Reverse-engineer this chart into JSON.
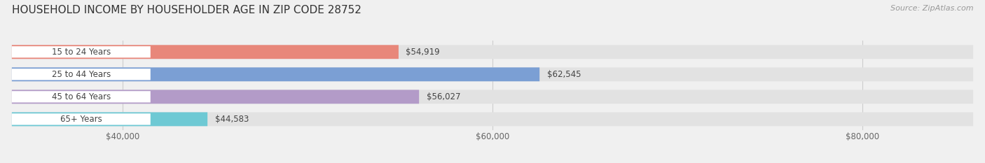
{
  "title": "HOUSEHOLD INCOME BY HOUSEHOLDER AGE IN ZIP CODE 28752",
  "source": "Source: ZipAtlas.com",
  "categories": [
    "15 to 24 Years",
    "25 to 44 Years",
    "45 to 64 Years",
    "65+ Years"
  ],
  "values": [
    54919,
    62545,
    56027,
    44583
  ],
  "bar_colors": [
    "#e8877a",
    "#7b9fd4",
    "#b39bc8",
    "#6ec9d4"
  ],
  "bar_labels": [
    "$54,919",
    "$62,545",
    "$56,027",
    "$44,583"
  ],
  "xlim_min": 34000,
  "xlim_max": 86000,
  "xticks": [
    40000,
    60000,
    80000
  ],
  "xtick_labels": [
    "$40,000",
    "$60,000",
    "$80,000"
  ],
  "background_color": "#f0f0f0",
  "bar_bg_color": "#e2e2e2",
  "title_fontsize": 11,
  "source_fontsize": 8,
  "label_fontsize": 8.5,
  "tick_fontsize": 8.5,
  "bar_height": 0.62
}
